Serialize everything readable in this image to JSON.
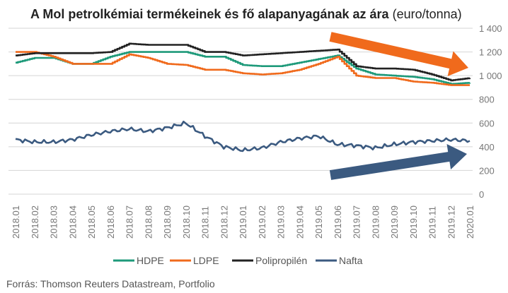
{
  "title_bold": "A Mol petrolkémiai termékeinek és fő alapanyagának az ára",
  "title_unit": "(euro/tonna)",
  "source": "Forrás: Thomson Reuters Datastream, Portfolio",
  "chart_data": {
    "type": "line",
    "x": [
      "2018.01",
      "2018.02",
      "2018.03",
      "2018.04",
      "2018.05",
      "2018.06",
      "2018.07",
      "2018.08",
      "2018.09",
      "2018.10",
      "2018.11",
      "2018.12",
      "2019.01",
      "2019.02",
      "2019.03",
      "2019.04",
      "2019.05",
      "2019.06",
      "2019.07",
      "2019.08",
      "2019.09",
      "2019.10",
      "2019.11",
      "2019.12",
      "2020.01"
    ],
    "ylim": [
      0,
      1400
    ],
    "yticks": [
      "0",
      "200",
      "400",
      "600",
      "800",
      "1 000",
      "1 200",
      "1 400"
    ],
    "yticks_values": [
      0,
      200,
      400,
      600,
      800,
      1000,
      1200,
      1400
    ],
    "grid": true,
    "legend_position": "bottom",
    "series": [
      {
        "name": "HDPE",
        "color": "#1e9a7a",
        "values": [
          1110,
          1150,
          1150,
          1100,
          1100,
          1160,
          1200,
          1200,
          1200,
          1200,
          1160,
          1160,
          1090,
          1080,
          1080,
          1110,
          1140,
          1170,
          1060,
          1010,
          1000,
          990,
          970,
          930,
          940
        ]
      },
      {
        "name": "LDPE",
        "color": "#f06a1c",
        "values": [
          1200,
          1200,
          1160,
          1100,
          1100,
          1100,
          1180,
          1150,
          1100,
          1090,
          1050,
          1050,
          1020,
          1010,
          1020,
          1050,
          1100,
          1160,
          1000,
          980,
          980,
          950,
          940,
          920,
          920
        ]
      },
      {
        "name": "Polipropilén",
        "color": "#222222",
        "values": [
          1170,
          1190,
          1190,
          1190,
          1190,
          1200,
          1270,
          1260,
          1260,
          1260,
          1200,
          1200,
          1170,
          1180,
          1190,
          1200,
          1210,
          1220,
          1080,
          1060,
          1060,
          1050,
          1010,
          960,
          980
        ]
      },
      {
        "name": "Nafta",
        "color": "#3b5a80",
        "values": [
          460,
          440,
          440,
          460,
          500,
          530,
          550,
          530,
          560,
          600,
          490,
          400,
          370,
          390,
          440,
          470,
          490,
          420,
          410,
          390,
          420,
          440,
          450,
          460,
          450
        ]
      }
    ],
    "annotations": [
      {
        "type": "arrow",
        "direction": "down-right",
        "color": "#f06a1c"
      },
      {
        "type": "arrow",
        "direction": "up-right",
        "color": "#3b5a80"
      }
    ]
  }
}
